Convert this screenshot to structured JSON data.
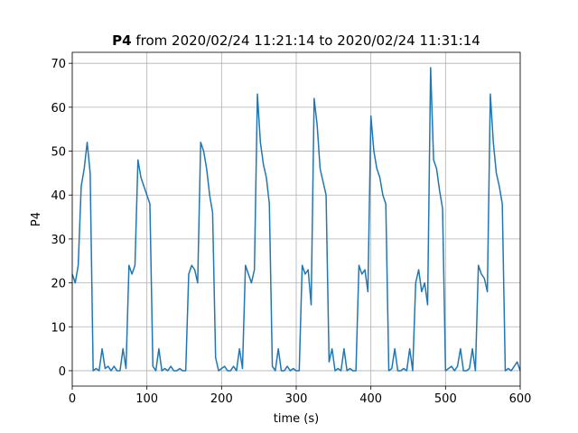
{
  "chart_data": {
    "type": "line",
    "title_prefix": "P4",
    "title": "from 2020/02/24 11:21:14 to 2020/02/24 11:31:14",
    "xlabel": "time (s)",
    "ylabel": "P4",
    "color": "#1f77b4",
    "grid": true,
    "xlim": [
      0,
      600
    ],
    "ylim": [
      -3.5,
      72.5
    ],
    "xticks": [
      0,
      100,
      200,
      300,
      400,
      500,
      600
    ],
    "yticks": [
      0,
      10,
      20,
      30,
      40,
      50,
      60,
      70
    ],
    "x": [
      0,
      4,
      8,
      12,
      16,
      20,
      24,
      28,
      32,
      36,
      40,
      44,
      48,
      52,
      56,
      60,
      64,
      68,
      72,
      76,
      80,
      84,
      88,
      92,
      96,
      100,
      104,
      108,
      112,
      116,
      120,
      124,
      128,
      132,
      136,
      140,
      144,
      148,
      152,
      156,
      160,
      164,
      168,
      172,
      176,
      180,
      184,
      188,
      192,
      196,
      200,
      204,
      208,
      212,
      216,
      220,
      224,
      228,
      232,
      236,
      240,
      244,
      248,
      252,
      256,
      260,
      264,
      268,
      272,
      276,
      280,
      284,
      288,
      292,
      296,
      300,
      304,
      308,
      312,
      316,
      320,
      324,
      328,
      332,
      336,
      340,
      344,
      348,
      352,
      356,
      360,
      364,
      368,
      372,
      376,
      380,
      384,
      388,
      392,
      396,
      400,
      404,
      408,
      412,
      416,
      420,
      424,
      428,
      432,
      436,
      440,
      444,
      448,
      452,
      456,
      460,
      464,
      468,
      472,
      476,
      480,
      484,
      488,
      492,
      496,
      500,
      504,
      508,
      512,
      516,
      520,
      524,
      528,
      532,
      536,
      540,
      544,
      548,
      552,
      556,
      560,
      564,
      568,
      572,
      576,
      580,
      584,
      588,
      592,
      596,
      600
    ],
    "values": [
      22,
      20,
      24,
      42,
      46,
      52,
      45,
      0,
      0.5,
      0,
      5,
      0.5,
      1,
      0,
      1,
      0,
      0,
      5,
      0.5,
      24,
      22,
      24,
      48,
      44,
      42,
      40,
      38,
      1,
      0,
      5,
      0,
      0.5,
      0,
      1,
      0,
      0,
      0.5,
      0,
      0,
      22,
      24,
      23,
      20,
      52,
      50,
      46,
      40,
      36,
      3,
      0,
      0.5,
      1,
      0,
      0,
      1,
      0,
      5,
      0.5,
      24,
      22,
      20,
      23,
      63,
      52,
      47,
      44,
      38,
      1,
      0,
      5,
      0,
      0,
      1,
      0,
      0.5,
      0,
      0,
      24,
      22,
      23,
      15,
      62,
      56,
      46,
      43,
      40,
      2,
      5,
      0,
      0.5,
      0,
      5,
      0,
      0.5,
      0,
      0,
      24,
      22,
      23,
      18,
      58,
      50,
      46,
      44,
      40,
      38,
      0,
      0.5,
      5,
      0,
      0,
      0.5,
      0,
      5,
      0,
      20,
      23,
      18,
      20,
      15,
      69,
      48,
      46,
      41,
      37,
      0,
      0.5,
      1,
      0,
      1,
      5,
      0,
      0,
      0.5,
      5,
      0,
      24,
      22,
      21,
      18,
      63,
      52,
      45,
      42,
      38,
      0,
      0.5,
      0,
      1,
      2,
      0
    ]
  }
}
